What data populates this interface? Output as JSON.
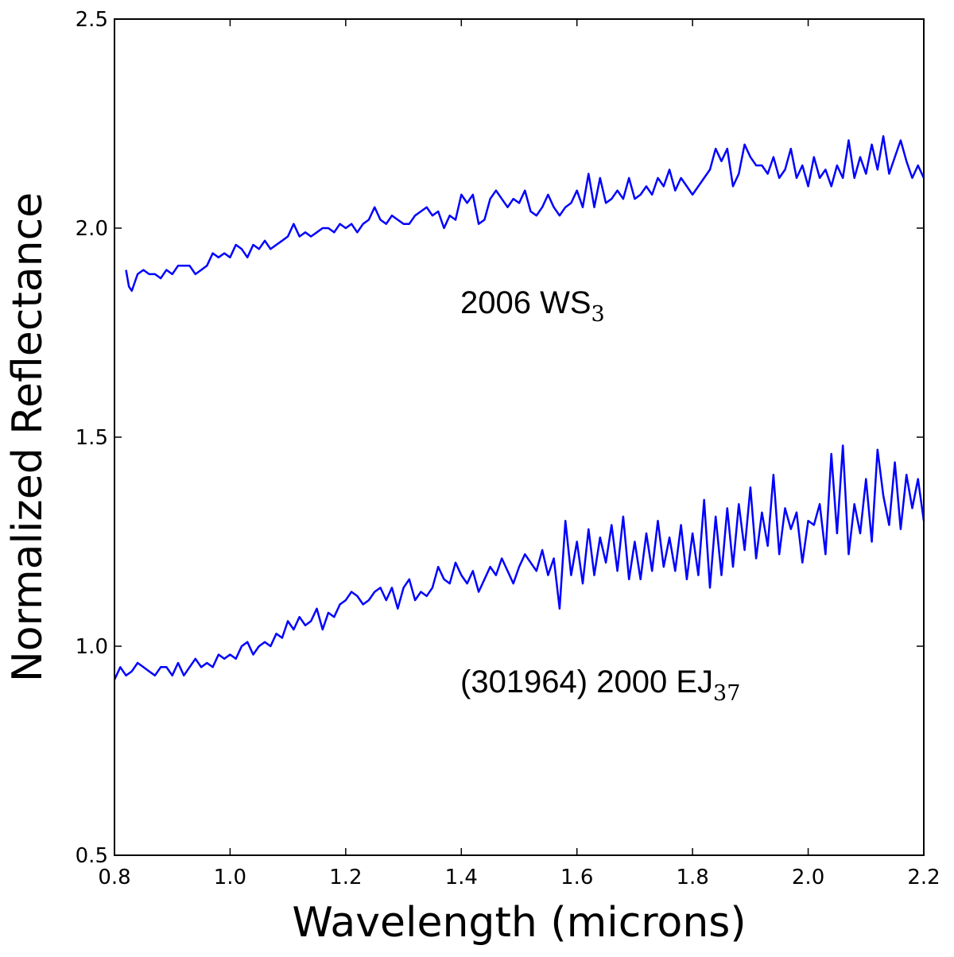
{
  "chart_data": {
    "type": "line",
    "title": "",
    "xlabel": "Wavelength (microns)",
    "ylabel": "Normalized Reflectance",
    "xlim": [
      0.8,
      2.2
    ],
    "ylim": [
      0.5,
      2.5
    ],
    "grid": false,
    "x_ticks": [
      0.8,
      1.0,
      1.2,
      1.4,
      1.6,
      1.8,
      2.0,
      2.2
    ],
    "x_tick_labels": [
      "0.8",
      "1.0",
      "1.2",
      "1.4",
      "1.6",
      "1.8",
      "2.0",
      "2.2"
    ],
    "y_ticks": [
      0.5,
      1.0,
      1.5,
      2.0,
      2.5
    ],
    "y_tick_labels": [
      "0.5",
      "1.0",
      "1.5",
      "2.0",
      "2.5"
    ],
    "series_color": "#0000ff",
    "series": [
      {
        "name": "2006 WS3",
        "label_main": "2006 WS",
        "label_sub": "3",
        "anchor": [
          0.82,
          1.9
        ],
        "points": [
          [
            0.82,
            1.9
          ],
          [
            0.825,
            1.86
          ],
          [
            0.83,
            1.85
          ],
          [
            0.84,
            1.89
          ],
          [
            0.85,
            1.9
          ],
          [
            0.86,
            1.89
          ],
          [
            0.87,
            1.89
          ],
          [
            0.88,
            1.88
          ],
          [
            0.89,
            1.9
          ],
          [
            0.9,
            1.89
          ],
          [
            0.91,
            1.91
          ],
          [
            0.92,
            1.91
          ],
          [
            0.93,
            1.91
          ],
          [
            0.94,
            1.89
          ],
          [
            0.95,
            1.9
          ],
          [
            0.96,
            1.91
          ],
          [
            0.97,
            1.94
          ],
          [
            0.98,
            1.93
          ],
          [
            0.99,
            1.94
          ],
          [
            1.0,
            1.93
          ],
          [
            1.01,
            1.96
          ],
          [
            1.02,
            1.95
          ],
          [
            1.03,
            1.93
          ],
          [
            1.04,
            1.96
          ],
          [
            1.05,
            1.95
          ],
          [
            1.06,
            1.97
          ],
          [
            1.07,
            1.95
          ],
          [
            1.08,
            1.96
          ],
          [
            1.09,
            1.97
          ],
          [
            1.1,
            1.98
          ],
          [
            1.11,
            2.01
          ],
          [
            1.12,
            1.98
          ],
          [
            1.13,
            1.99
          ],
          [
            1.14,
            1.98
          ],
          [
            1.15,
            1.99
          ],
          [
            1.16,
            2.0
          ],
          [
            1.17,
            2.0
          ],
          [
            1.18,
            1.99
          ],
          [
            1.19,
            2.01
          ],
          [
            1.2,
            2.0
          ],
          [
            1.21,
            2.01
          ],
          [
            1.22,
            1.99
          ],
          [
            1.23,
            2.01
          ],
          [
            1.24,
            2.02
          ],
          [
            1.25,
            2.05
          ],
          [
            1.26,
            2.02
          ],
          [
            1.27,
            2.01
          ],
          [
            1.28,
            2.03
          ],
          [
            1.29,
            2.02
          ],
          [
            1.3,
            2.01
          ],
          [
            1.31,
            2.01
          ],
          [
            1.32,
            2.03
          ],
          [
            1.33,
            2.04
          ],
          [
            1.34,
            2.05
          ],
          [
            1.35,
            2.03
          ],
          [
            1.36,
            2.04
          ],
          [
            1.37,
            2.0
          ],
          [
            1.38,
            2.03
          ],
          [
            1.39,
            2.02
          ],
          [
            1.4,
            2.08
          ],
          [
            1.41,
            2.06
          ],
          [
            1.42,
            2.08
          ],
          [
            1.43,
            2.01
          ],
          [
            1.44,
            2.02
          ],
          [
            1.45,
            2.07
          ],
          [
            1.46,
            2.09
          ],
          [
            1.47,
            2.07
          ],
          [
            1.48,
            2.05
          ],
          [
            1.49,
            2.07
          ],
          [
            1.5,
            2.06
          ],
          [
            1.51,
            2.09
          ],
          [
            1.52,
            2.04
          ],
          [
            1.53,
            2.03
          ],
          [
            1.54,
            2.05
          ],
          [
            1.55,
            2.08
          ],
          [
            1.56,
            2.05
          ],
          [
            1.57,
            2.03
          ],
          [
            1.58,
            2.05
          ],
          [
            1.59,
            2.06
          ],
          [
            1.6,
            2.09
          ],
          [
            1.61,
            2.05
          ],
          [
            1.62,
            2.13
          ],
          [
            1.63,
            2.05
          ],
          [
            1.64,
            2.12
          ],
          [
            1.65,
            2.06
          ],
          [
            1.66,
            2.07
          ],
          [
            1.67,
            2.09
          ],
          [
            1.68,
            2.07
          ],
          [
            1.69,
            2.12
          ],
          [
            1.7,
            2.07
          ],
          [
            1.71,
            2.08
          ],
          [
            1.72,
            2.1
          ],
          [
            1.73,
            2.08
          ],
          [
            1.74,
            2.12
          ],
          [
            1.75,
            2.1
          ],
          [
            1.76,
            2.14
          ],
          [
            1.77,
            2.09
          ],
          [
            1.78,
            2.12
          ],
          [
            1.79,
            2.1
          ],
          [
            1.8,
            2.08
          ],
          [
            1.81,
            2.1
          ],
          [
            1.82,
            2.12
          ],
          [
            1.83,
            2.14
          ],
          [
            1.84,
            2.19
          ],
          [
            1.85,
            2.16
          ],
          [
            1.86,
            2.19
          ],
          [
            1.87,
            2.1
          ],
          [
            1.88,
            2.13
          ],
          [
            1.89,
            2.2
          ],
          [
            1.9,
            2.17
          ],
          [
            1.91,
            2.15
          ],
          [
            1.92,
            2.15
          ],
          [
            1.93,
            2.13
          ],
          [
            1.94,
            2.17
          ],
          [
            1.95,
            2.12
          ],
          [
            1.96,
            2.14
          ],
          [
            1.97,
            2.19
          ],
          [
            1.98,
            2.12
          ],
          [
            1.99,
            2.15
          ],
          [
            2.0,
            2.1
          ],
          [
            2.01,
            2.17
          ],
          [
            2.02,
            2.12
          ],
          [
            2.03,
            2.14
          ],
          [
            2.04,
            2.1
          ],
          [
            2.05,
            2.15
          ],
          [
            2.06,
            2.12
          ],
          [
            2.07,
            2.21
          ],
          [
            2.08,
            2.12
          ],
          [
            2.09,
            2.17
          ],
          [
            2.1,
            2.13
          ],
          [
            2.11,
            2.2
          ],
          [
            2.12,
            2.14
          ],
          [
            2.13,
            2.22
          ],
          [
            2.14,
            2.13
          ],
          [
            2.15,
            2.17
          ],
          [
            2.16,
            2.21
          ],
          [
            2.17,
            2.16
          ],
          [
            2.18,
            2.12
          ],
          [
            2.19,
            2.15
          ],
          [
            2.2,
            2.12
          ]
        ]
      },
      {
        "name": "(301964) 2000 EJ37",
        "label_main": "(301964) 2000 EJ",
        "label_sub": "37",
        "anchor": [
          0.8,
          0.92
        ],
        "points": [
          [
            0.8,
            0.92
          ],
          [
            0.81,
            0.95
          ],
          [
            0.82,
            0.93
          ],
          [
            0.83,
            0.94
          ],
          [
            0.84,
            0.96
          ],
          [
            0.85,
            0.95
          ],
          [
            0.86,
            0.94
          ],
          [
            0.87,
            0.93
          ],
          [
            0.88,
            0.95
          ],
          [
            0.89,
            0.95
          ],
          [
            0.9,
            0.93
          ],
          [
            0.91,
            0.96
          ],
          [
            0.92,
            0.93
          ],
          [
            0.93,
            0.95
          ],
          [
            0.94,
            0.97
          ],
          [
            0.95,
            0.95
          ],
          [
            0.96,
            0.96
          ],
          [
            0.97,
            0.95
          ],
          [
            0.98,
            0.98
          ],
          [
            0.99,
            0.97
          ],
          [
            1.0,
            0.98
          ],
          [
            1.01,
            0.97
          ],
          [
            1.02,
            1.0
          ],
          [
            1.03,
            1.01
          ],
          [
            1.04,
            0.98
          ],
          [
            1.05,
            1.0
          ],
          [
            1.06,
            1.01
          ],
          [
            1.07,
            1.0
          ],
          [
            1.08,
            1.03
          ],
          [
            1.09,
            1.02
          ],
          [
            1.1,
            1.06
          ],
          [
            1.11,
            1.04
          ],
          [
            1.12,
            1.07
          ],
          [
            1.13,
            1.05
          ],
          [
            1.14,
            1.06
          ],
          [
            1.15,
            1.09
          ],
          [
            1.16,
            1.04
          ],
          [
            1.17,
            1.08
          ],
          [
            1.18,
            1.07
          ],
          [
            1.19,
            1.1
          ],
          [
            1.2,
            1.11
          ],
          [
            1.21,
            1.13
          ],
          [
            1.22,
            1.12
          ],
          [
            1.23,
            1.1
          ],
          [
            1.24,
            1.11
          ],
          [
            1.25,
            1.13
          ],
          [
            1.26,
            1.14
          ],
          [
            1.27,
            1.11
          ],
          [
            1.28,
            1.14
          ],
          [
            1.29,
            1.09
          ],
          [
            1.3,
            1.14
          ],
          [
            1.31,
            1.16
          ],
          [
            1.32,
            1.11
          ],
          [
            1.33,
            1.13
          ],
          [
            1.34,
            1.12
          ],
          [
            1.35,
            1.14
          ],
          [
            1.36,
            1.19
          ],
          [
            1.37,
            1.16
          ],
          [
            1.38,
            1.15
          ],
          [
            1.39,
            1.2
          ],
          [
            1.4,
            1.17
          ],
          [
            1.41,
            1.15
          ],
          [
            1.42,
            1.18
          ],
          [
            1.43,
            1.13
          ],
          [
            1.44,
            1.16
          ],
          [
            1.45,
            1.19
          ],
          [
            1.46,
            1.17
          ],
          [
            1.47,
            1.21
          ],
          [
            1.48,
            1.18
          ],
          [
            1.49,
            1.15
          ],
          [
            1.5,
            1.19
          ],
          [
            1.51,
            1.22
          ],
          [
            1.52,
            1.2
          ],
          [
            1.53,
            1.18
          ],
          [
            1.54,
            1.23
          ],
          [
            1.55,
            1.17
          ],
          [
            1.56,
            1.21
          ],
          [
            1.57,
            1.09
          ],
          [
            1.58,
            1.3
          ],
          [
            1.59,
            1.17
          ],
          [
            1.6,
            1.25
          ],
          [
            1.61,
            1.15
          ],
          [
            1.62,
            1.28
          ],
          [
            1.63,
            1.17
          ],
          [
            1.64,
            1.26
          ],
          [
            1.65,
            1.2
          ],
          [
            1.66,
            1.29
          ],
          [
            1.67,
            1.18
          ],
          [
            1.68,
            1.31
          ],
          [
            1.69,
            1.16
          ],
          [
            1.7,
            1.25
          ],
          [
            1.71,
            1.16
          ],
          [
            1.72,
            1.27
          ],
          [
            1.73,
            1.18
          ],
          [
            1.74,
            1.3
          ],
          [
            1.75,
            1.19
          ],
          [
            1.76,
            1.26
          ],
          [
            1.77,
            1.18
          ],
          [
            1.78,
            1.29
          ],
          [
            1.79,
            1.16
          ],
          [
            1.8,
            1.27
          ],
          [
            1.81,
            1.17
          ],
          [
            1.82,
            1.35
          ],
          [
            1.83,
            1.14
          ],
          [
            1.84,
            1.31
          ],
          [
            1.85,
            1.17
          ],
          [
            1.86,
            1.33
          ],
          [
            1.87,
            1.19
          ],
          [
            1.88,
            1.34
          ],
          [
            1.89,
            1.23
          ],
          [
            1.9,
            1.38
          ],
          [
            1.91,
            1.21
          ],
          [
            1.92,
            1.32
          ],
          [
            1.93,
            1.24
          ],
          [
            1.94,
            1.41
          ],
          [
            1.95,
            1.22
          ],
          [
            1.96,
            1.33
          ],
          [
            1.97,
            1.28
          ],
          [
            1.98,
            1.32
          ],
          [
            1.99,
            1.2
          ],
          [
            2.0,
            1.3
          ],
          [
            2.01,
            1.29
          ],
          [
            2.02,
            1.34
          ],
          [
            2.03,
            1.22
          ],
          [
            2.04,
            1.46
          ],
          [
            2.05,
            1.27
          ],
          [
            2.06,
            1.48
          ],
          [
            2.07,
            1.22
          ],
          [
            2.08,
            1.34
          ],
          [
            2.09,
            1.27
          ],
          [
            2.1,
            1.4
          ],
          [
            2.11,
            1.25
          ],
          [
            2.12,
            1.47
          ],
          [
            2.13,
            1.36
          ],
          [
            2.14,
            1.29
          ],
          [
            2.15,
            1.44
          ],
          [
            2.16,
            1.28
          ],
          [
            2.17,
            1.41
          ],
          [
            2.18,
            1.33
          ],
          [
            2.19,
            1.4
          ],
          [
            2.2,
            1.3
          ]
        ]
      }
    ]
  }
}
